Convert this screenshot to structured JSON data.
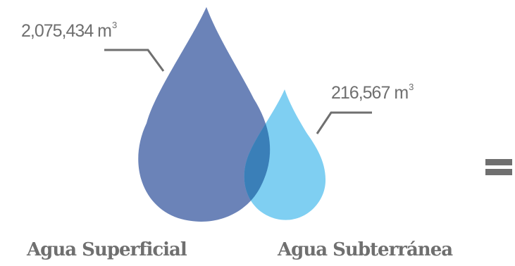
{
  "superficial": {
    "name": "Agua Superficial",
    "value": "2,075,434 m",
    "unit_exponent": "3",
    "color": "#6b83b8"
  },
  "subterranea": {
    "name": "Agua Subterránea",
    "value": "216,567 m",
    "unit_exponent": "3",
    "color": "#7fcff2"
  },
  "overlap_color": "#3a7fb8",
  "leader_color": "#6f6f6f",
  "operator_symbol": "="
}
